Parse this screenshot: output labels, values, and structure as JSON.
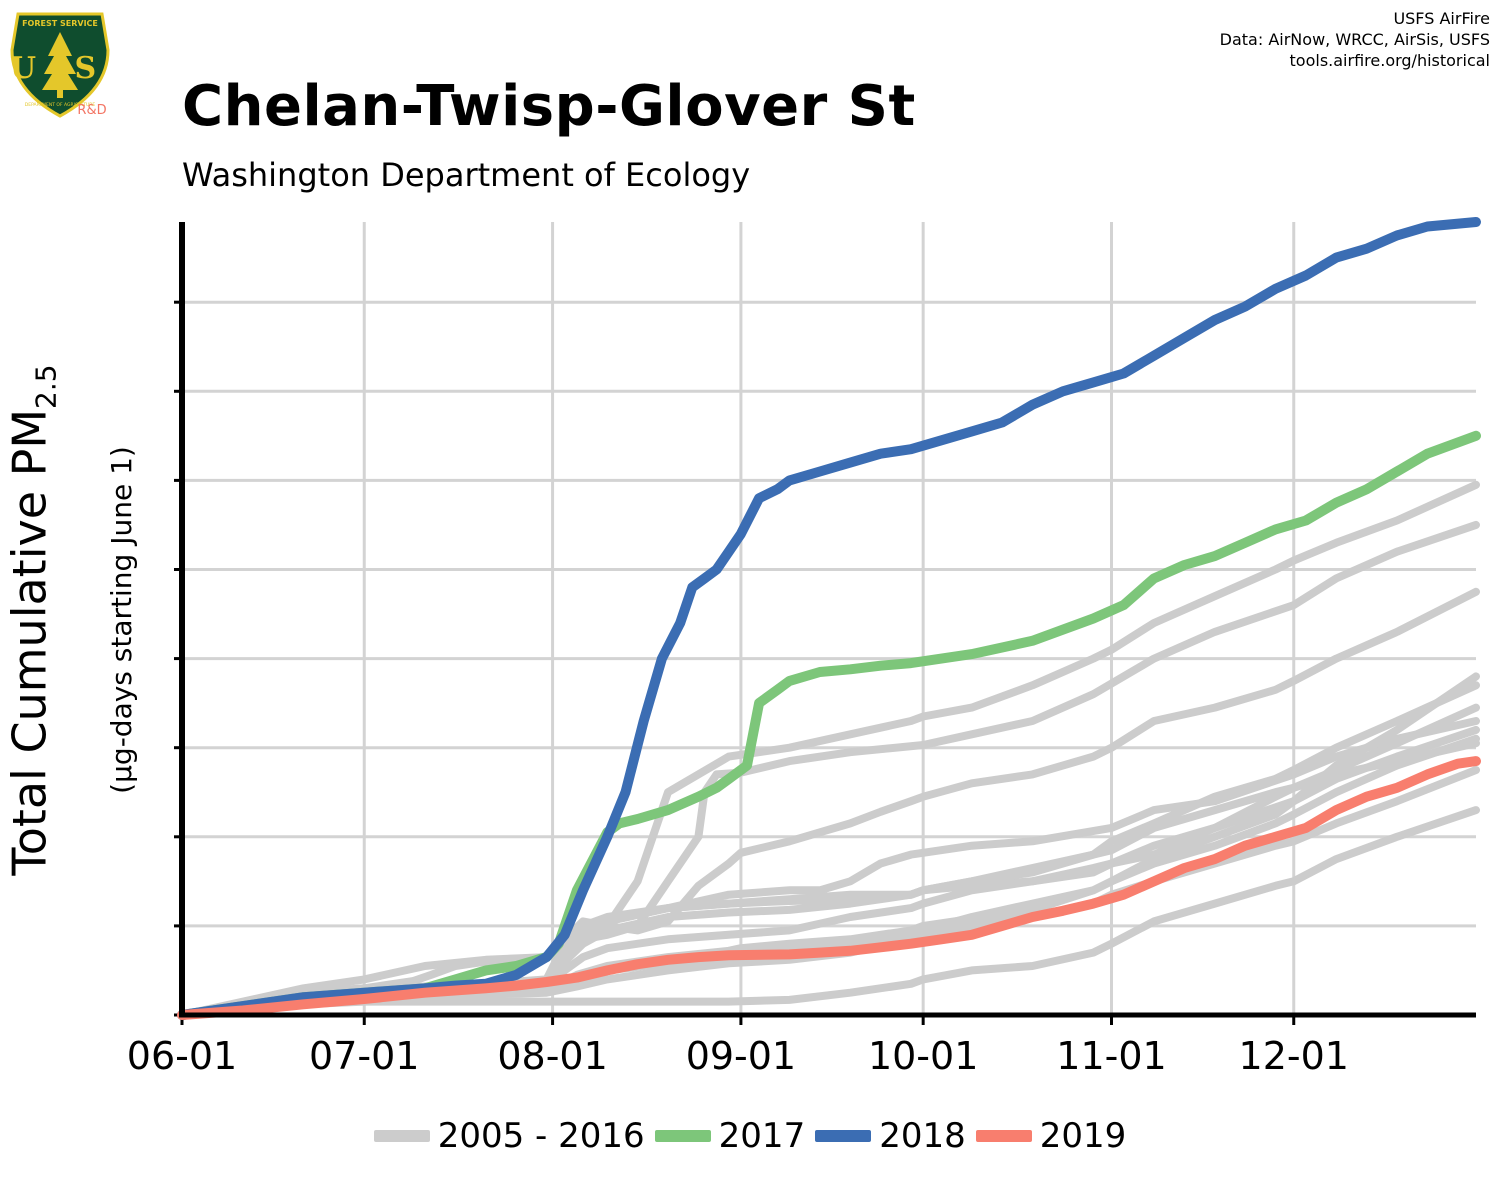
{
  "logo": {
    "top_text": "FOREST SERVICE",
    "center_text": "U S",
    "bottom_text": "DEPARTMENT OF AGRICULTURE",
    "tag": "R&D",
    "shield_color": "#0f4d2e",
    "border_color": "#e4c72a",
    "tag_color": "#f37564"
  },
  "credits": {
    "line1": "USFS AirFire",
    "line2": "Data: AirNow, WRCC, AirSis, USFS",
    "line3": "tools.airfire.org/historical"
  },
  "chart_data": {
    "type": "line",
    "title": "Chelan-Twisp-Glover St",
    "subtitle": "Washington Department of Ecology",
    "ylabel": "Total Cumulative PM",
    "ylabel_subscript": "2.5",
    "ylabel_units": "(µg-days starting June 1)",
    "xlabel": "",
    "x_tick_labels": [
      "06-01",
      "07-01",
      "08-01",
      "09-01",
      "10-01",
      "11-01",
      "12-01"
    ],
    "x_tick_days": [
      0,
      30,
      61,
      92,
      122,
      153,
      183
    ],
    "xlim": [
      0,
      213
    ],
    "ylim": [
      0,
      890
    ],
    "y_ticks": [
      0,
      100,
      200,
      300,
      400,
      500,
      600,
      700,
      800
    ],
    "y_tick_labels_shown": false,
    "grid": true,
    "legend_position": "bottom",
    "colors": {
      "historical": "#cccccc",
      "y2017": "#7dc67a",
      "y2018": "#3b6db3",
      "y2019": "#f87e6e"
    },
    "legend": [
      {
        "label": "2005 - 2016",
        "color": "#cccccc"
      },
      {
        "label": "2017",
        "color": "#7dc67a"
      },
      {
        "label": "2018",
        "color": "#3b6db3"
      },
      {
        "label": "2019",
        "color": "#f87e6e"
      }
    ],
    "historical_series": [
      {
        "x": [
          0,
          20,
          30,
          38,
          41,
          45,
          50,
          60,
          63,
          66,
          70,
          75,
          80,
          85,
          90,
          92,
          100,
          105,
          110,
          115,
          120,
          122,
          130,
          140,
          150,
          153,
          160,
          170,
          180,
          183,
          190,
          200,
          213
        ],
        "y": [
          0,
          25,
          30,
          38,
          45,
          55,
          60,
          65,
          85,
          105,
          100,
          95,
          105,
          145,
          170,
          182,
          195,
          205,
          215,
          228,
          240,
          245,
          260,
          270,
          290,
          300,
          330,
          345,
          365,
          375,
          400,
          430,
          475
        ]
      },
      {
        "x": [
          0,
          20,
          30,
          40,
          50,
          60,
          63,
          66,
          70,
          75,
          80,
          85,
          86,
          88,
          90,
          92,
          100,
          110,
          122,
          130,
          140,
          150,
          160,
          170,
          183,
          190,
          200,
          213
        ],
        "y": [
          0,
          22,
          28,
          32,
          35,
          38,
          70,
          85,
          90,
          100,
          150,
          200,
          250,
          270,
          271,
          272,
          285,
          295,
          303,
          315,
          330,
          360,
          400,
          430,
          460,
          490,
          520,
          550
        ]
      },
      {
        "x": [
          0,
          20,
          30,
          40,
          50,
          60,
          63,
          66,
          70,
          80,
          90,
          100,
          110,
          120,
          122,
          130,
          140,
          150,
          153,
          160,
          170,
          183,
          190,
          200,
          213
        ],
        "y": [
          0,
          20,
          25,
          30,
          35,
          40,
          80,
          100,
          110,
          120,
          125,
          128,
          130,
          135,
          140,
          145,
          150,
          160,
          170,
          190,
          210,
          240,
          280,
          320,
          380
        ]
      },
      {
        "x": [
          0,
          20,
          30,
          40,
          50,
          60,
          63,
          66,
          70,
          80,
          90,
          100,
          105,
          110,
          115,
          120,
          122,
          130,
          140,
          153,
          160,
          170,
          183,
          190,
          200,
          213
        ],
        "y": [
          0,
          20,
          25,
          28,
          30,
          35,
          60,
          90,
          105,
          120,
          135,
          140,
          140,
          150,
          170,
          180,
          182,
          190,
          195,
          210,
          230,
          240,
          270,
          290,
          310,
          330
        ]
      },
      {
        "x": [
          0,
          20,
          30,
          40,
          50,
          60,
          63,
          66,
          70,
          80,
          90,
          100,
          110,
          120,
          122,
          130,
          140,
          150,
          153,
          160,
          170,
          180,
          183,
          190,
          200,
          213
        ],
        "y": [
          0,
          18,
          22,
          26,
          30,
          32,
          60,
          80,
          95,
          110,
          115,
          118,
          125,
          135,
          140,
          150,
          165,
          180,
          195,
          215,
          245,
          265,
          275,
          300,
          330,
          370
        ]
      },
      {
        "x": [
          0,
          20,
          30,
          40,
          50,
          60,
          63,
          66,
          70,
          80,
          90,
          100,
          110,
          120,
          122,
          130,
          140,
          150,
          153,
          160,
          170,
          180,
          183,
          190,
          200,
          213
        ],
        "y": [
          0,
          18,
          22,
          25,
          28,
          30,
          50,
          65,
          75,
          85,
          90,
          95,
          110,
          120,
          125,
          140,
          150,
          165,
          170,
          180,
          210,
          245,
          255,
          275,
          305,
          345
        ]
      },
      {
        "x": [
          0,
          20,
          30,
          40,
          50,
          60,
          65,
          70,
          80,
          90,
          92,
          100,
          110,
          120,
          122,
          130,
          140,
          150,
          153,
          160,
          170,
          180,
          183,
          190,
          200,
          213
        ],
        "y": [
          0,
          16,
          20,
          24,
          26,
          28,
          45,
          55,
          65,
          72,
          75,
          80,
          85,
          95,
          100,
          108,
          118,
          140,
          150,
          170,
          190,
          215,
          225,
          250,
          280,
          310
        ]
      },
      {
        "x": [
          0,
          20,
          30,
          40,
          50,
          60,
          65,
          70,
          80,
          90,
          100,
          110,
          120,
          122,
          130,
          140,
          150,
          153,
          160,
          170,
          180,
          183,
          190,
          200,
          213
        ],
        "y": [
          0,
          12,
          15,
          15,
          15,
          15,
          15,
          15,
          15,
          15,
          17,
          25,
          35,
          40,
          50,
          55,
          70,
          80,
          105,
          125,
          145,
          150,
          175,
          200,
          230
        ]
      },
      {
        "x": [
          0,
          20,
          30,
          40,
          50,
          60,
          65,
          70,
          80,
          90,
          100,
          110,
          120,
          122,
          130,
          140,
          150,
          153,
          160,
          170,
          180,
          183,
          190,
          200,
          213
        ],
        "y": [
          0,
          14,
          18,
          22,
          25,
          28,
          40,
          50,
          58,
          65,
          72,
          80,
          90,
          95,
          110,
          125,
          140,
          150,
          175,
          200,
          225,
          240,
          265,
          290,
          320
        ]
      },
      {
        "x": [
          0,
          20,
          30,
          40,
          50,
          60,
          65,
          70,
          80,
          90,
          100,
          110,
          120,
          122,
          130,
          140,
          150,
          153,
          160,
          170,
          180,
          183,
          190,
          200,
          213
        ],
        "y": [
          0,
          14,
          17,
          20,
          23,
          25,
          32,
          40,
          50,
          58,
          62,
          70,
          85,
          90,
          100,
          110,
          125,
          135,
          150,
          170,
          190,
          195,
          215,
          240,
          275
        ]
      },
      {
        "x": [
          0,
          20,
          30,
          40,
          50,
          60,
          63,
          66,
          70,
          75,
          80,
          90,
          100,
          110,
          120,
          122,
          130,
          140,
          150,
          153,
          160,
          170,
          180,
          183,
          190,
          200,
          213
        ],
        "y": [
          0,
          20,
          26,
          30,
          33,
          36,
          70,
          90,
          100,
          150,
          250,
          290,
          300,
          315,
          330,
          335,
          345,
          370,
          400,
          410,
          440,
          470,
          500,
          510,
          530,
          555,
          595
        ]
      },
      {
        "x": [
          0,
          20,
          30,
          40,
          50,
          60,
          63,
          66,
          70,
          80,
          90,
          100,
          110,
          120,
          122,
          130,
          140,
          150,
          153,
          160,
          170,
          180,
          183,
          190,
          200,
          213
        ],
        "y": [
          0,
          30,
          40,
          55,
          62,
          65,
          80,
          95,
          105,
          120,
          125,
          130,
          135,
          135,
          140,
          150,
          160,
          180,
          185,
          210,
          230,
          250,
          255,
          270,
          285,
          305
        ]
      }
    ],
    "series": [
      {
        "name": "2017",
        "color": "#7dc67a",
        "x": [
          0,
          20,
          30,
          40,
          45,
          50,
          55,
          60,
          62,
          65,
          70,
          72,
          75,
          80,
          85,
          88,
          90,
          93,
          95,
          98,
          100,
          105,
          110,
          115,
          120,
          125,
          130,
          140,
          150,
          155,
          160,
          165,
          170,
          175,
          180,
          185,
          190,
          195,
          200,
          205,
          213
        ],
        "y": [
          0,
          20,
          25,
          30,
          40,
          50,
          55,
          65,
          80,
          140,
          205,
          215,
          220,
          230,
          245,
          255,
          265,
          280,
          350,
          365,
          375,
          385,
          388,
          392,
          395,
          400,
          405,
          420,
          445,
          460,
          490,
          505,
          515,
          530,
          545,
          555,
          575,
          590,
          610,
          630,
          650
        ]
      },
      {
        "name": "2018",
        "color": "#3b6db3",
        "x": [
          0,
          20,
          30,
          40,
          45,
          50,
          55,
          60,
          63,
          66,
          70,
          73,
          76,
          79,
          82,
          84,
          86,
          88,
          90,
          92,
          95,
          98,
          100,
          105,
          110,
          115,
          120,
          125,
          130,
          135,
          140,
          145,
          150,
          155,
          160,
          165,
          170,
          175,
          180,
          185,
          190,
          195,
          200,
          205,
          213
        ],
        "y": [
          0,
          20,
          25,
          30,
          33,
          35,
          45,
          65,
          90,
          140,
          200,
          250,
          330,
          400,
          440,
          480,
          490,
          500,
          520,
          540,
          580,
          590,
          600,
          610,
          620,
          630,
          635,
          645,
          655,
          665,
          685,
          700,
          710,
          720,
          740,
          760,
          780,
          795,
          815,
          830,
          850,
          860,
          875,
          885,
          890
        ]
      },
      {
        "name": "2019",
        "color": "#f87e6e",
        "x": [
          0,
          10,
          20,
          30,
          40,
          50,
          55,
          60,
          65,
          70,
          75,
          80,
          85,
          90,
          100,
          105,
          110,
          115,
          120,
          125,
          130,
          135,
          140,
          145,
          150,
          155,
          160,
          165,
          170,
          175,
          180,
          185,
          190,
          195,
          200,
          205,
          210,
          213
        ],
        "y": [
          0,
          5,
          12,
          18,
          25,
          30,
          33,
          37,
          42,
          50,
          57,
          62,
          65,
          67,
          68,
          70,
          72,
          76,
          80,
          85,
          90,
          100,
          110,
          117,
          125,
          135,
          150,
          165,
          175,
          190,
          200,
          210,
          230,
          245,
          255,
          270,
          282,
          285
        ]
      }
    ]
  }
}
